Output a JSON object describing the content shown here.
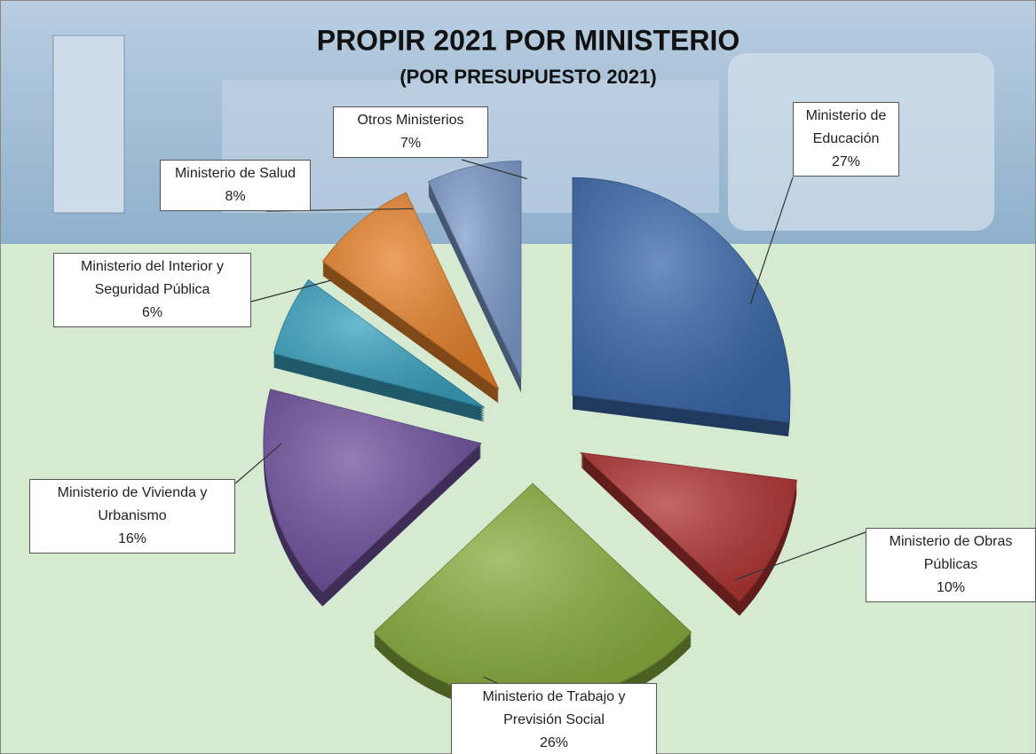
{
  "chart_data": {
    "type": "pie",
    "title": "PROPIR 2021 POR MINISTERIO",
    "subtitle": "(POR PRESUPUESTO 2021)",
    "categories": [
      "Ministerio de Educación",
      "Ministerio de Obras Públicas",
      "Ministerio de Trabajo y Previsión Social",
      "Ministerio de Vivienda y Urbanismo",
      "Ministerio del Interior y Seguridad Pública",
      "Ministerio de Salud",
      "Otros Ministerios"
    ],
    "values": [
      27,
      10,
      26,
      16,
      6,
      8,
      7
    ],
    "value_labels": [
      "27%",
      "10%",
      "26%",
      "16%",
      "6%",
      "8%",
      "7%"
    ],
    "colors": [
      "#3b6aab",
      "#b23535",
      "#8aae3e",
      "#70539f",
      "#3aa3c0",
      "#e8842c",
      "#809ecd"
    ]
  }
}
